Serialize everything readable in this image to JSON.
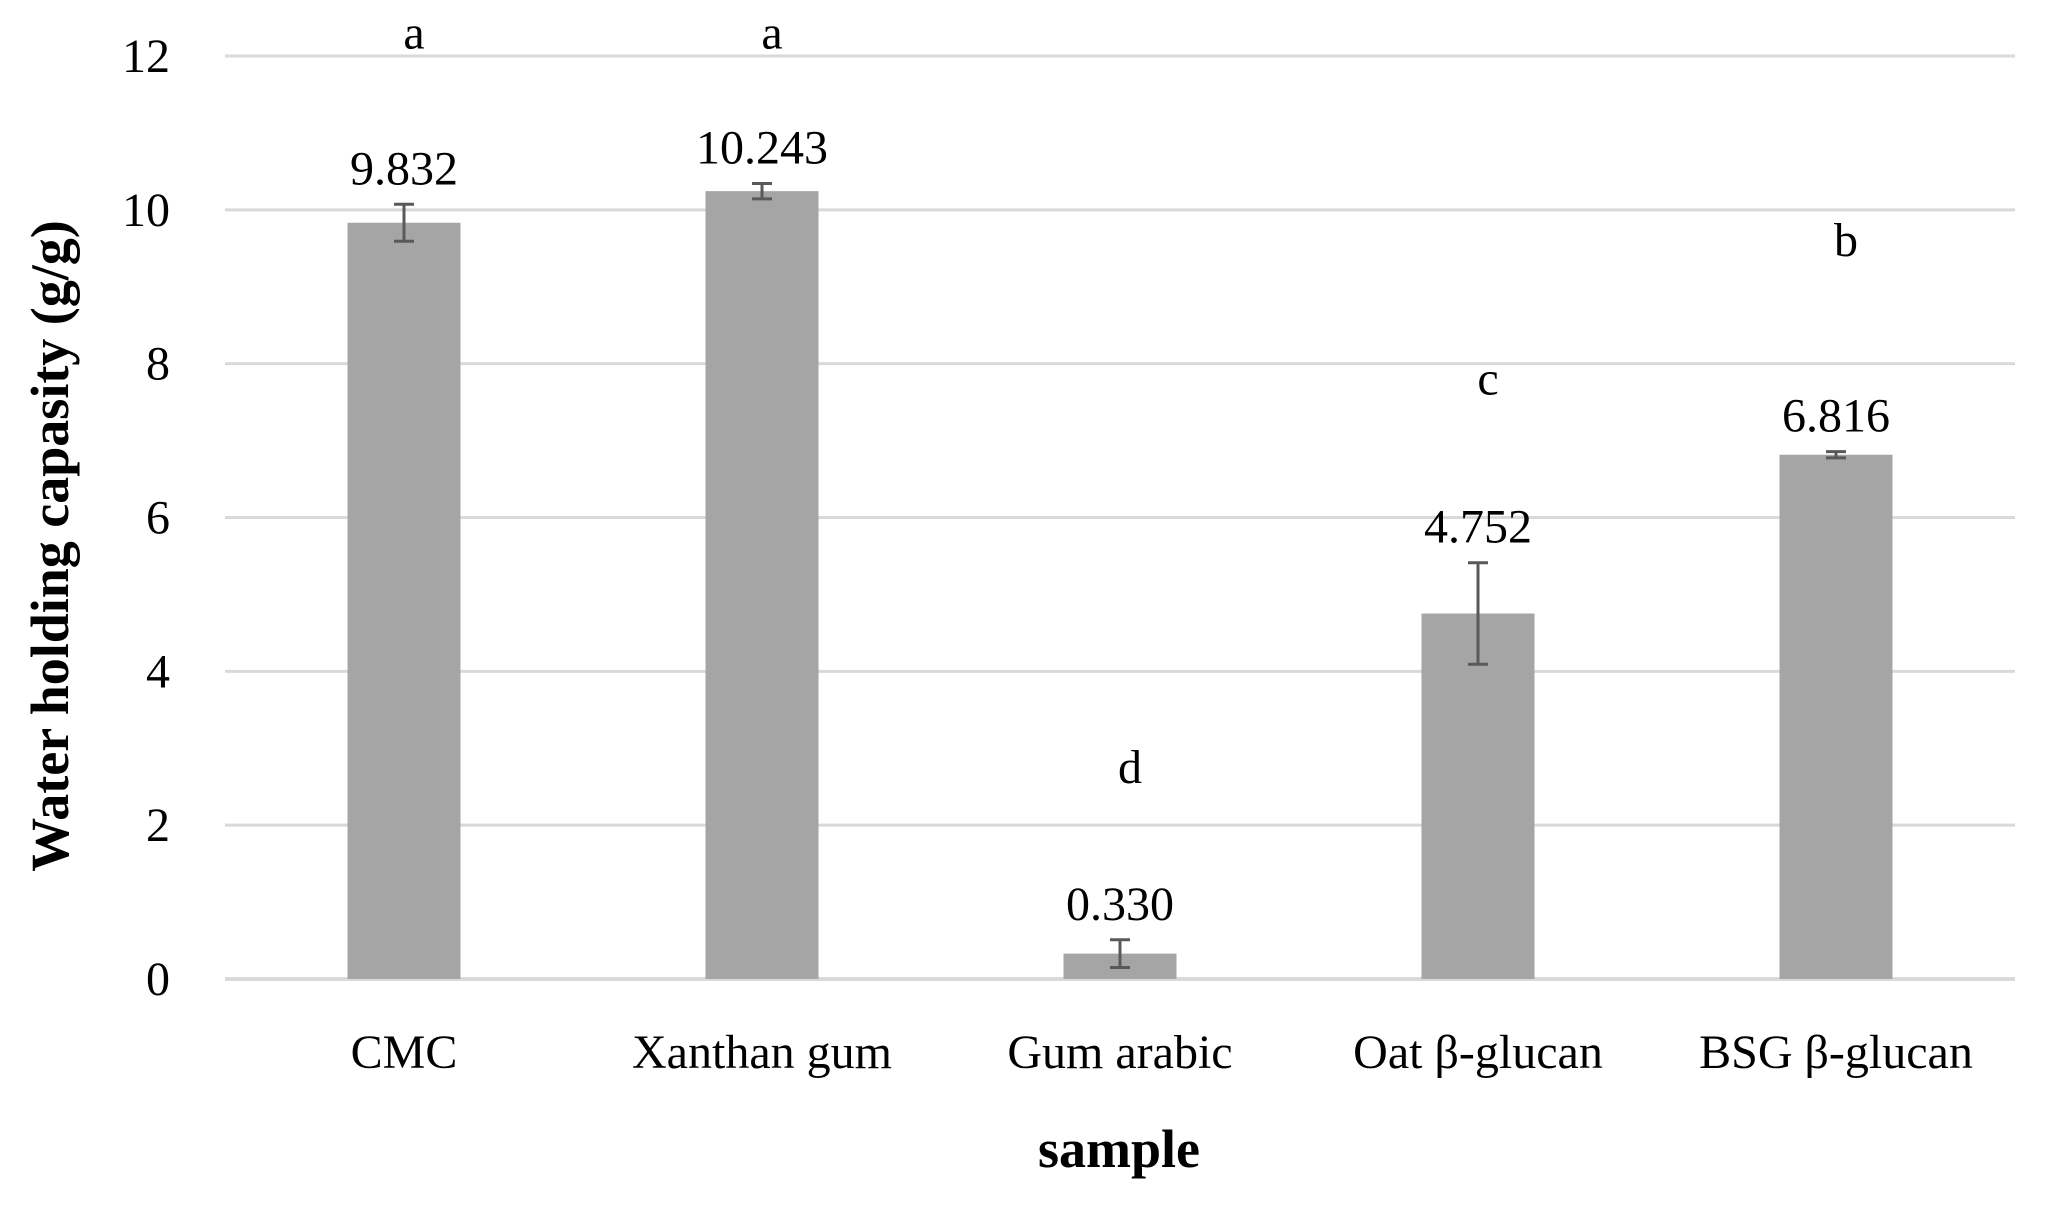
{
  "chart_data": {
    "type": "bar",
    "title": "",
    "xlabel": "sample",
    "ylabel": "Water holding capasity (g/g)",
    "ylim": [
      0,
      12
    ],
    "yticks": [
      0,
      2,
      4,
      6,
      8,
      10,
      12
    ],
    "grid": true,
    "legend": "none",
    "categories": [
      "CMC",
      "Xanthan gum",
      "Gum arabic",
      "Oat β-glucan",
      "BSG β-glucan"
    ],
    "values": [
      9.832,
      10.243,
      0.33,
      4.752,
      6.816
    ],
    "value_labels": [
      "9.832",
      "10.243",
      "0.330",
      "4.752",
      "6.816"
    ],
    "error": [
      0.24,
      0.1,
      0.18,
      0.66,
      0.04
    ],
    "significance_letters": [
      "a",
      "a",
      "d",
      "c",
      "b"
    ],
    "letter_positions": [
      12.1,
      12.1,
      2.55,
      7.6,
      9.4
    ],
    "colors": {
      "bar": "#a5a5a5",
      "error_bar": "#595959",
      "grid": "#d9d9d9",
      "baseline": "#d9d9d9"
    }
  }
}
